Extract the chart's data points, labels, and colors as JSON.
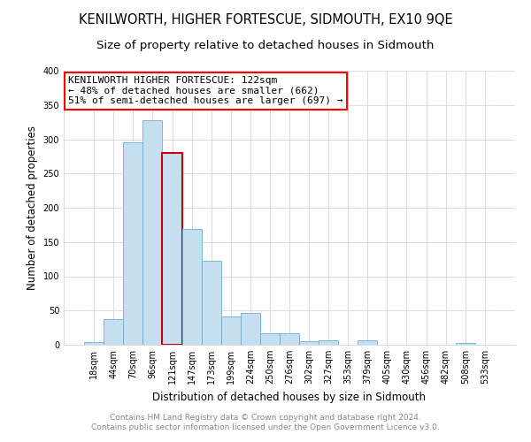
{
  "title": "KENILWORTH, HIGHER FORTESCUE, SIDMOUTH, EX10 9QE",
  "subtitle": "Size of property relative to detached houses in Sidmouth",
  "xlabel": "Distribution of detached houses by size in Sidmouth",
  "ylabel": "Number of detached properties",
  "bar_color": "#c5dff0",
  "bar_edge_color": "#6aaed6",
  "marker_bar_edge_color": "#cc0000",
  "background_color": "#ffffff",
  "grid_color": "#d3dce8",
  "categories": [
    "18sqm",
    "44sqm",
    "70sqm",
    "96sqm",
    "121sqm",
    "147sqm",
    "173sqm",
    "199sqm",
    "224sqm",
    "250sqm",
    "276sqm",
    "302sqm",
    "327sqm",
    "353sqm",
    "379sqm",
    "405sqm",
    "430sqm",
    "456sqm",
    "482sqm",
    "508sqm",
    "533sqm"
  ],
  "values": [
    4,
    37,
    295,
    328,
    280,
    169,
    123,
    41,
    46,
    17,
    17,
    5,
    6,
    0,
    6,
    0,
    0,
    0,
    0,
    2,
    0
  ],
  "ylim": [
    0,
    400
  ],
  "yticks": [
    0,
    50,
    100,
    150,
    200,
    250,
    300,
    350,
    400
  ],
  "annotation_title": "KENILWORTH HIGHER FORTESCUE: 122sqm",
  "annotation_line1": "← 48% of detached houses are smaller (662)",
  "annotation_line2": "51% of semi-detached houses are larger (697) →",
  "marker_bar_index": 4,
  "footer_line1": "Contains HM Land Registry data © Crown copyright and database right 2024.",
  "footer_line2": "Contains public sector information licensed under the Open Government Licence v3.0.",
  "title_fontsize": 10.5,
  "subtitle_fontsize": 9.5,
  "axis_label_fontsize": 8.5,
  "tick_fontsize": 7,
  "annotation_fontsize": 8,
  "footer_fontsize": 6.5
}
